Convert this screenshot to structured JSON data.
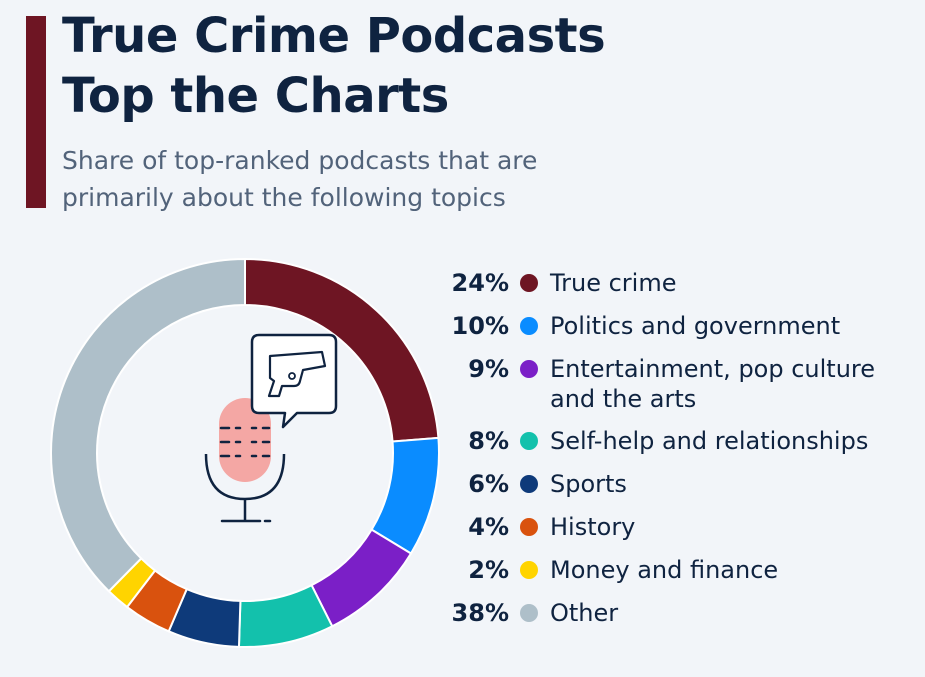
{
  "header": {
    "title_line1": "True Crime Podcasts",
    "title_line2": "Top the Charts",
    "subtitle_line1": "Share of top-ranked podcasts that are",
    "subtitle_line2": "primarily about the following topics"
  },
  "chart_data": {
    "type": "pie",
    "style": "donut",
    "legend_position": "right",
    "center_icons": [
      "microphone-icon",
      "gun-speech-bubble-icon"
    ],
    "slices": [
      {
        "pct_label": "24%",
        "value": 24,
        "label_lines": [
          "True crime"
        ],
        "color": "#6e1523"
      },
      {
        "pct_label": "10%",
        "value": 10,
        "label_lines": [
          "Politics and government"
        ],
        "color": "#0a8cff"
      },
      {
        "pct_label": "9%",
        "value": 9,
        "label_lines": [
          "Entertainment, pop culture",
          "and the arts"
        ],
        "color": "#7b1fc7"
      },
      {
        "pct_label": "8%",
        "value": 8,
        "label_lines": [
          "Self-help and relationships"
        ],
        "color": "#13c1ac"
      },
      {
        "pct_label": "6%",
        "value": 6,
        "label_lines": [
          "Sports"
        ],
        "color": "#0e3a7a"
      },
      {
        "pct_label": "4%",
        "value": 4,
        "label_lines": [
          "History"
        ],
        "color": "#d9520e"
      },
      {
        "pct_label": "2%",
        "value": 2,
        "label_lines": [
          "Money and finance"
        ],
        "color": "#ffd400"
      },
      {
        "pct_label": "38%",
        "value": 38,
        "label_lines": [
          "Other"
        ],
        "color": "#aebfc9"
      }
    ]
  }
}
